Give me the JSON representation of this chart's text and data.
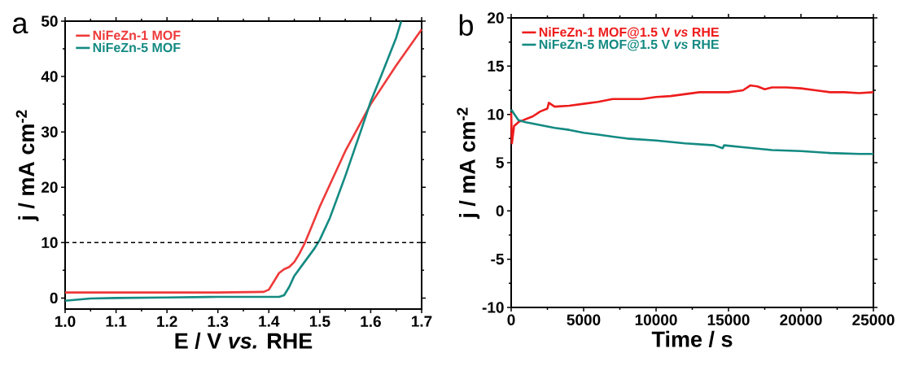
{
  "chart_data": [
    {
      "type": "line",
      "xlabel": "E / V *vs.* RHE",
      "ylabel": "j / mA cm$^{-2}$",
      "annotations": [
        "a"
      ],
      "legend": "top left",
      "xlim": [
        1.0,
        1.7
      ],
      "ylim": [
        -2,
        50
      ],
      "xticks": [
        {
          "value": 1.0,
          "label": "1.0"
        },
        1.1,
        1.2,
        1.3,
        1.4,
        1.5,
        1.6,
        1.7
      ],
      "yticks": [
        0,
        10,
        20,
        30,
        40,
        50
      ],
      "ref_lines": [
        {
          "axis": "y",
          "value": 10,
          "color": "#000000",
          "line_style": "dashed"
        }
      ],
      "series": [
        {
          "name": "NiFeZn-1 MOF",
          "color": "#ee3a3a",
          "x": [
            1.0,
            1.1,
            1.2,
            1.3,
            1.39,
            1.4,
            1.41,
            1.42,
            1.43,
            1.44,
            1.45,
            1.46,
            1.47,
            1.48,
            1.5,
            1.55,
            1.6,
            1.65,
            1.7
          ],
          "values": [
            1.0,
            1.0,
            1.0,
            1.0,
            1.1,
            1.5,
            3,
            4.5,
            5.2,
            5.6,
            6.5,
            8,
            9.8,
            12,
            16.5,
            26.5,
            35,
            42,
            48.5
          ]
        },
        {
          "name": "NiFeZn-5 MOF",
          "color": "#138a82",
          "x": [
            1.0,
            1.05,
            1.1,
            1.2,
            1.3,
            1.42,
            1.43,
            1.44,
            1.45,
            1.47,
            1.49,
            1.5,
            1.52,
            1.55,
            1.58,
            1.6,
            1.62,
            1.65,
            1.66
          ],
          "values": [
            -0.5,
            -0.1,
            0,
            0.1,
            0.2,
            0.2,
            0.5,
            2,
            4,
            6.5,
            9,
            10.5,
            14.5,
            22,
            30,
            35.5,
            40,
            47,
            50
          ]
        }
      ]
    },
    {
      "type": "line",
      "xlabel": "Time / s",
      "ylabel": "j / mA cm$^{-2}$",
      "annotations": [
        "b"
      ],
      "legend": "top left",
      "xlim": [
        0,
        25000
      ],
      "ylim": [
        -10,
        20
      ],
      "xticks": [
        0,
        5000,
        10000,
        15000,
        20000,
        25000
      ],
      "yticks": [
        -10,
        -5,
        0,
        5,
        10,
        15,
        20
      ],
      "series": [
        {
          "name": "NiFeZn-1 MOF@1.5 V *vs* RHE",
          "color": "#ee1c1c",
          "x": [
            0,
            50,
            200,
            500,
            1000,
            1500,
            2000,
            2500,
            2600,
            3000,
            4000,
            5000,
            6000,
            7000,
            8000,
            9000,
            10000,
            11000,
            12000,
            13000,
            14000,
            15000,
            16000,
            16500,
            17000,
            17500,
            18000,
            19000,
            20000,
            21000,
            22000,
            23000,
            24000,
            25000
          ],
          "values": [
            10.2,
            7,
            8.8,
            9.2,
            9.5,
            9.8,
            10.3,
            10.6,
            11.2,
            10.8,
            10.9,
            11.1,
            11.3,
            11.6,
            11.6,
            11.6,
            11.8,
            11.9,
            12.1,
            12.3,
            12.3,
            12.3,
            12.5,
            13.0,
            12.9,
            12.6,
            12.8,
            12.8,
            12.7,
            12.5,
            12.3,
            12.3,
            12.2,
            12.3
          ]
        },
        {
          "name": "NiFeZn-5 MOF@1.5 V *vs* RHE",
          "color": "#138a82",
          "x": [
            0,
            500,
            1000,
            2000,
            3000,
            4000,
            5000,
            6000,
            7000,
            8000,
            10000,
            12000,
            14000,
            14600,
            14700,
            16000,
            18000,
            20000,
            22000,
            24000,
            25000
          ],
          "values": [
            10.5,
            9.4,
            9.2,
            8.9,
            8.6,
            8.4,
            8.1,
            7.9,
            7.7,
            7.5,
            7.3,
            7.0,
            6.8,
            6.5,
            6.8,
            6.6,
            6.3,
            6.2,
            6.0,
            5.9,
            5.9
          ]
        }
      ]
    }
  ]
}
